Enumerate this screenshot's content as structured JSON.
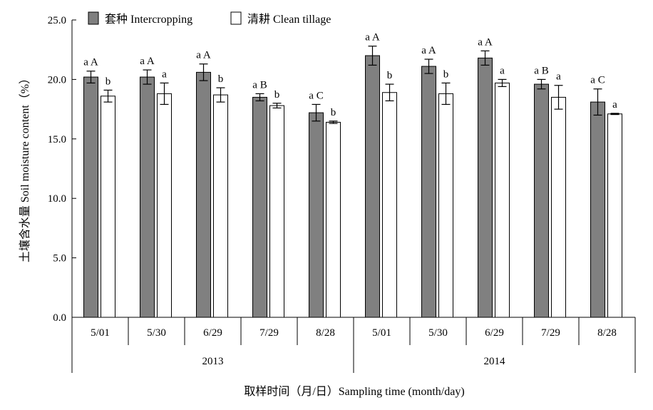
{
  "chart_data": {
    "type": "bar",
    "title": "",
    "xlabel": "取样时间（月/日）Sampling time (month/day)",
    "ylabel": "土壤含水量 Soil moisture content（%）",
    "ylim": [
      0,
      25
    ],
    "yticks": [
      "0.0",
      "5.0",
      "10.0",
      "15.0",
      "20.0",
      "25.0"
    ],
    "legend_position": "top-left",
    "groups": [
      {
        "year": "2013",
        "categories": [
          "5/01",
          "5/30",
          "6/29",
          "7/29",
          "8/28"
        ]
      },
      {
        "year": "2014",
        "categories": [
          "5/01",
          "5/30",
          "6/29",
          "7/29",
          "8/28"
        ]
      }
    ],
    "series": [
      {
        "name": "套种 Intercropping",
        "color": "#808080",
        "values": [
          20.2,
          20.2,
          20.6,
          18.5,
          17.2,
          22.0,
          21.1,
          21.8,
          19.6,
          18.1
        ],
        "errors": [
          0.5,
          0.6,
          0.7,
          0.3,
          0.7,
          0.8,
          0.6,
          0.6,
          0.4,
          1.1
        ],
        "labels": [
          "a A",
          "a A",
          "a A",
          "a B",
          "a C",
          "a A",
          "a A",
          "a A",
          "a B",
          "a C"
        ]
      },
      {
        "name": "清耕 Clean tillage",
        "color": "#ffffff",
        "values": [
          18.6,
          18.8,
          18.7,
          17.8,
          16.4,
          18.9,
          18.8,
          19.7,
          18.5,
          17.1
        ],
        "errors": [
          0.5,
          0.9,
          0.6,
          0.2,
          0.1,
          0.7,
          0.9,
          0.3,
          1.0,
          0.05
        ],
        "labels": [
          "b",
          "a",
          "b",
          "b",
          "b",
          "b",
          "b",
          "a",
          "a",
          "a"
        ]
      }
    ]
  }
}
